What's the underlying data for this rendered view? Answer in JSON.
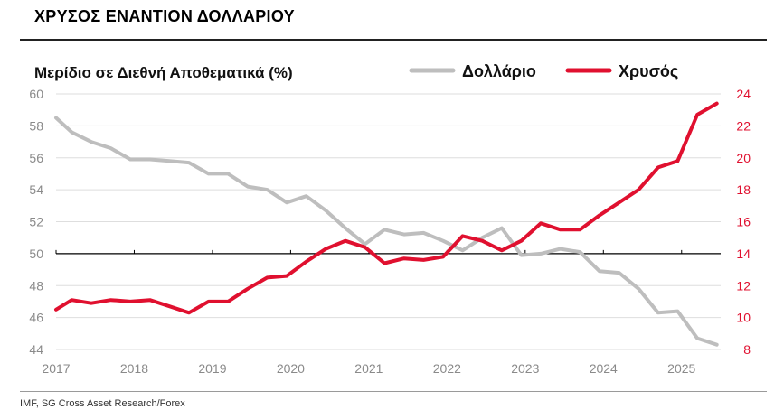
{
  "header": {
    "title": "ΧΡΥΣΟΣ ΕΝΑΝΤΙΟΝ ΔΟΛΛΑΡΙΟΥ"
  },
  "footer": {
    "source": "IMF, SG Cross Asset Research/Forex"
  },
  "chart_data": {
    "type": "line",
    "title": "Μερίδιο σε Διεθνή Αποθεματικά (%)",
    "xlabel": "",
    "x_ticks": [
      "2017",
      "2018",
      "2019",
      "2020",
      "2021",
      "2022",
      "2023",
      "2024",
      "2025"
    ],
    "xlim": [
      2017.0,
      2025.5
    ],
    "left_axis": {
      "ylim": [
        44,
        60
      ],
      "ticks": [
        "44",
        "46",
        "48",
        "50",
        "52",
        "54",
        "56",
        "58",
        "60"
      ]
    },
    "right_axis": {
      "ylim": [
        8,
        24
      ],
      "ticks": [
        "8",
        "10",
        "12",
        "14",
        "16",
        "18",
        "20",
        "22",
        "24"
      ]
    },
    "reference_line": {
      "axis": "left",
      "value": 50
    },
    "series": [
      {
        "name": "Δολλάριο",
        "axis": "left",
        "color": "#bebebe",
        "x": [
          2017.0,
          2017.2,
          2017.45,
          2017.7,
          2017.95,
          2018.2,
          2018.45,
          2018.7,
          2018.95,
          2019.2,
          2019.45,
          2019.7,
          2019.95,
          2020.2,
          2020.45,
          2020.7,
          2020.95,
          2021.2,
          2021.45,
          2021.7,
          2021.95,
          2022.2,
          2022.45,
          2022.7,
          2022.95,
          2023.2,
          2023.45,
          2023.7,
          2023.95,
          2024.2,
          2024.45,
          2024.7,
          2024.95,
          2025.2,
          2025.45
        ],
        "values": [
          58.5,
          57.6,
          57.0,
          56.6,
          55.9,
          55.9,
          55.8,
          55.7,
          55.0,
          55.0,
          54.2,
          54.0,
          53.2,
          53.6,
          52.7,
          51.6,
          50.6,
          51.5,
          51.2,
          51.3,
          50.8,
          50.2,
          51.0,
          51.6,
          49.9,
          50.0,
          50.3,
          50.1,
          48.9,
          48.8,
          47.8,
          46.3,
          46.4,
          44.7,
          44.3
        ]
      },
      {
        "name": "Χρυσός",
        "axis": "right",
        "color": "#e0102f",
        "x": [
          2017.0,
          2017.2,
          2017.45,
          2017.7,
          2017.95,
          2018.2,
          2018.45,
          2018.7,
          2018.95,
          2019.2,
          2019.45,
          2019.7,
          2019.95,
          2020.2,
          2020.45,
          2020.7,
          2020.95,
          2021.2,
          2021.45,
          2021.7,
          2021.95,
          2022.2,
          2022.45,
          2022.7,
          2022.95,
          2023.2,
          2023.45,
          2023.7,
          2023.95,
          2024.2,
          2024.45,
          2024.7,
          2024.95,
          2025.2,
          2025.45
        ],
        "values": [
          10.5,
          11.1,
          10.9,
          11.1,
          11.0,
          11.1,
          10.7,
          10.3,
          11.0,
          11.0,
          11.8,
          12.5,
          12.6,
          13.5,
          14.3,
          14.8,
          14.4,
          13.4,
          13.7,
          13.6,
          13.8,
          15.1,
          14.8,
          14.2,
          14.8,
          15.9,
          15.5,
          15.5,
          16.4,
          17.2,
          18.0,
          19.4,
          19.8,
          22.7,
          23.4
        ]
      }
    ],
    "legend": {
      "placement": "top-right"
    }
  }
}
